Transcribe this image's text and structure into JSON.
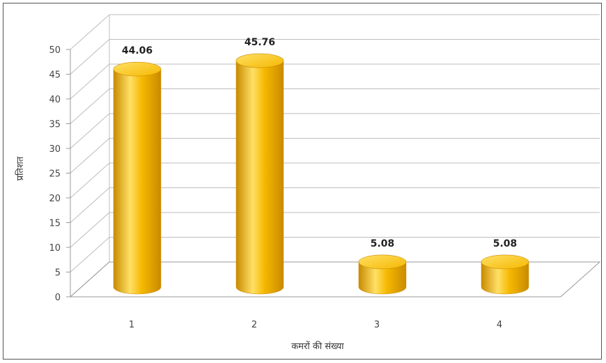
{
  "chart_data": {
    "type": "bar",
    "style": "3d-cylinder",
    "categories": [
      "1",
      "2",
      "3",
      "4"
    ],
    "values": [
      44.06,
      45.76,
      5.08,
      5.08
    ],
    "data_labels": [
      "44.06",
      "45.76",
      "5.08",
      "5.08"
    ],
    "ylabel": "प्रतिशत",
    "xlabel": "कमरों की संख्या",
    "ylim": [
      0,
      50
    ],
    "yticks": [
      0,
      5,
      10,
      15,
      20,
      25,
      30,
      35,
      40,
      45,
      50
    ],
    "grid": true,
    "legend": "none",
    "bar_color": "#f5b800",
    "bar_dark": "#c98a00",
    "bar_light": "#ffe066"
  }
}
